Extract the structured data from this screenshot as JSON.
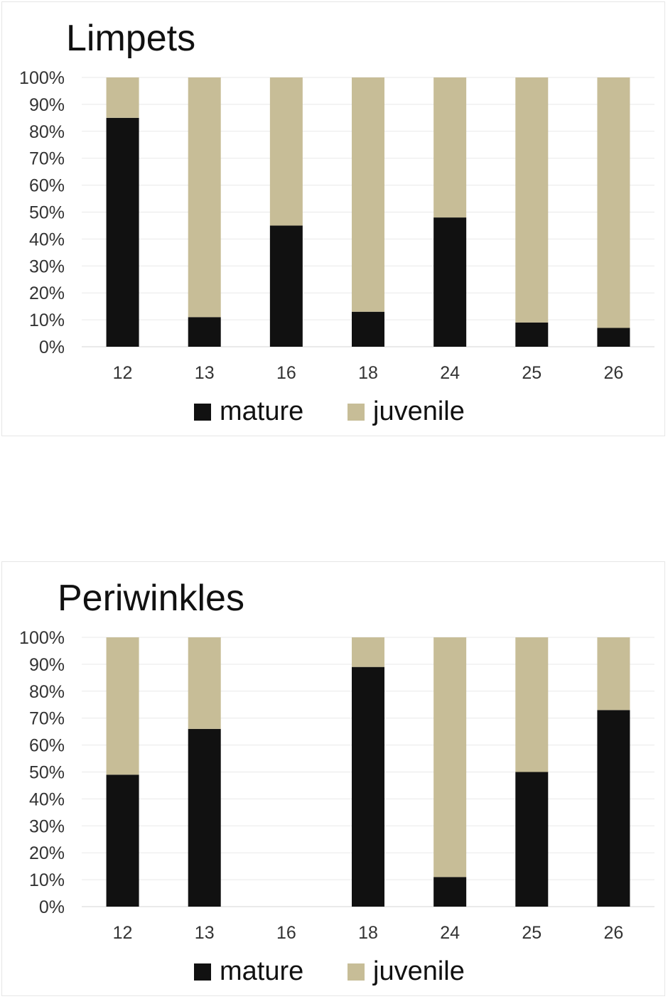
{
  "chart_data": [
    {
      "type": "bar",
      "stacked": true,
      "normalized": true,
      "title": "Limpets",
      "xlabel": "",
      "ylabel": "",
      "categories": [
        "12",
        "13",
        "16",
        "18",
        "24",
        "25",
        "26"
      ],
      "series": [
        {
          "name": "mature",
          "color": "#111111",
          "values": [
            85,
            11,
            45,
            13,
            48,
            9,
            7
          ]
        },
        {
          "name": "juvenile",
          "color": "#c7bd97",
          "values": [
            15,
            89,
            55,
            87,
            52,
            91,
            93
          ]
        }
      ],
      "ylim": [
        0,
        100
      ],
      "yticks": [
        "0%",
        "10%",
        "20%",
        "30%",
        "40%",
        "50%",
        "60%",
        "70%",
        "80%",
        "90%",
        "100%"
      ],
      "grid": true,
      "legend": "bottom"
    },
    {
      "type": "bar",
      "stacked": true,
      "normalized": true,
      "title": "Periwinkles",
      "xlabel": "",
      "ylabel": "",
      "categories": [
        "12",
        "13",
        "16",
        "18",
        "24",
        "25",
        "26"
      ],
      "series": [
        {
          "name": "mature",
          "color": "#111111",
          "values": [
            49,
            66,
            0,
            89,
            11,
            50,
            73
          ]
        },
        {
          "name": "juvenile",
          "color": "#c7bd97",
          "values": [
            51,
            34,
            0,
            11,
            89,
            50,
            27
          ]
        }
      ],
      "ylim": [
        0,
        100
      ],
      "yticks": [
        "0%",
        "10%",
        "20%",
        "30%",
        "40%",
        "50%",
        "60%",
        "70%",
        "80%",
        "90%",
        "100%"
      ],
      "grid": true,
      "legend": "bottom"
    }
  ]
}
